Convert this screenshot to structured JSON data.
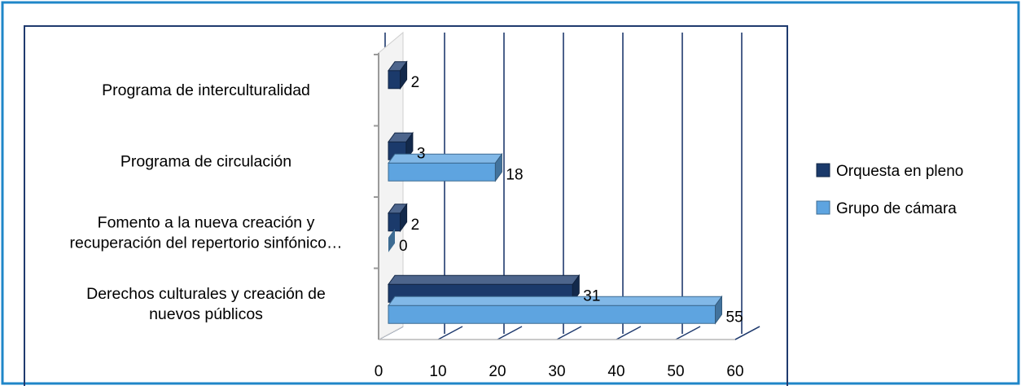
{
  "chart_data": {
    "type": "bar",
    "orientation": "horizontal",
    "style": "3d-clustered",
    "categories": [
      [
        "Derechos culturales y creación de",
        "nuevos públicos"
      ],
      [
        "Fomento a la nueva creación y",
        "recuperación del repertorio sinfónico…"
      ],
      [
        "Programa de circulación"
      ],
      [
        "Programa de interculturalidad"
      ]
    ],
    "series": [
      {
        "name": "Orquesta en pleno",
        "values": [
          31,
          2,
          3,
          2
        ],
        "color": "#1b3a6b"
      },
      {
        "name": "Grupo de cámara",
        "values": [
          55,
          0,
          18,
          null
        ],
        "color": "#5ea4e0"
      }
    ],
    "data_labels": [
      [
        "31",
        "2",
        "3",
        "2"
      ],
      [
        "55",
        "0",
        "18",
        ""
      ]
    ],
    "x_ticks": [
      "0",
      "10",
      "20",
      "30",
      "40",
      "50",
      "60"
    ],
    "xlim": [
      0,
      60
    ],
    "grid": "vertical",
    "legend_position": "right",
    "frame_color": "#1f86c8",
    "plot_border_color": "#1f3a6e"
  }
}
